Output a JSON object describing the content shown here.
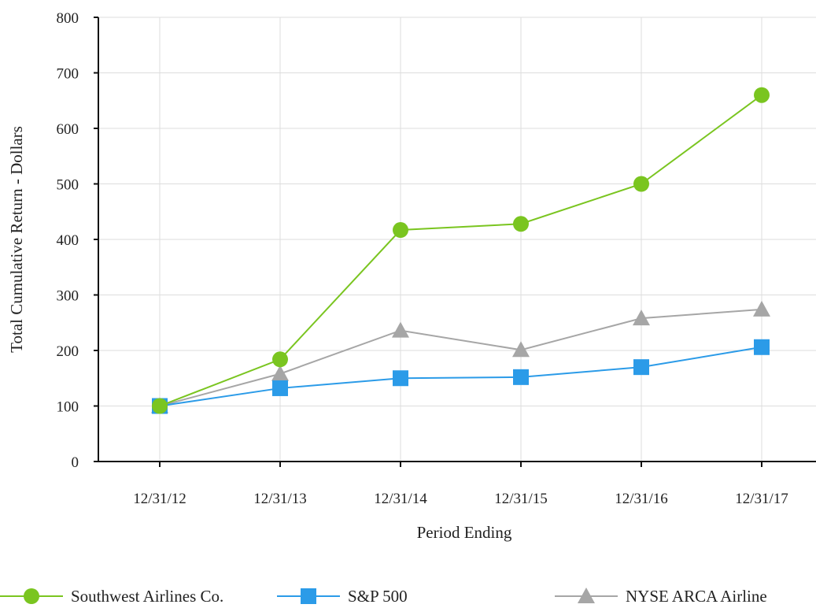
{
  "chart_data": {
    "type": "line",
    "xlabel": "Period Ending",
    "ylabel": "Total Cumulative Return - Dollars",
    "categories": [
      "12/31/12",
      "12/31/13",
      "12/31/14",
      "12/31/15",
      "12/31/16",
      "12/31/17"
    ],
    "ylim": [
      0,
      800
    ],
    "yticks": [
      "0",
      "100",
      "200",
      "300",
      "400",
      "500",
      "600",
      "700",
      "800"
    ],
    "grid": true,
    "legend_position": "bottom",
    "series": [
      {
        "name": "Southwest Airlines Co.",
        "marker": "circle",
        "color": "#7ac520",
        "values": [
          100,
          184,
          417,
          428,
          500,
          660
        ]
      },
      {
        "name": "S&P 500",
        "marker": "square",
        "color": "#2b9be8",
        "values": [
          100,
          132,
          150,
          152,
          170,
          206
        ]
      },
      {
        "name": "NYSE ARCA Airline",
        "marker": "triangle",
        "color": "#a6a6a6",
        "values": [
          100,
          158,
          236,
          201,
          258,
          274
        ]
      }
    ]
  }
}
